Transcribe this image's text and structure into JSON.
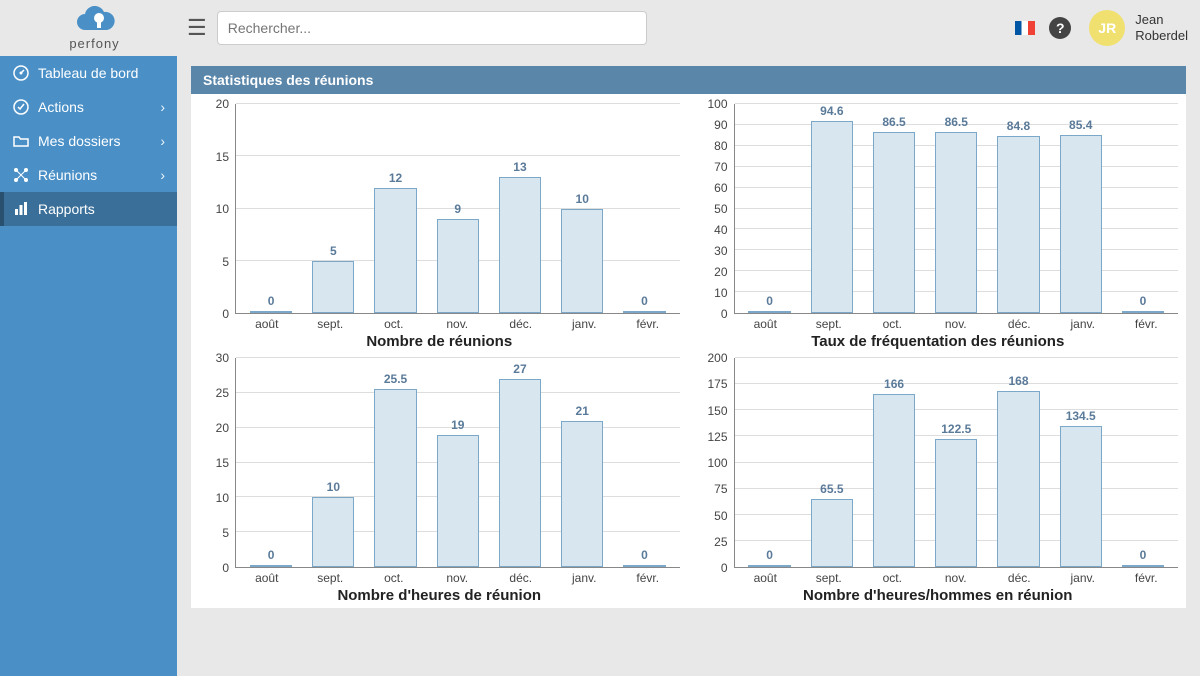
{
  "app": {
    "logo_text": "perfony",
    "search_placeholder": "Rechercher...",
    "user": {
      "initials": "JR",
      "first_name": "Jean",
      "last_name": "Roberdel"
    }
  },
  "sidebar": {
    "items": [
      {
        "icon": "gauge",
        "label": "Tableau de bord",
        "has_children": false
      },
      {
        "icon": "check",
        "label": "Actions",
        "has_children": true
      },
      {
        "icon": "folder",
        "label": "Mes dossiers",
        "has_children": true
      },
      {
        "icon": "nodes",
        "label": "Réunions",
        "has_children": true
      },
      {
        "icon": "bars",
        "label": "Rapports",
        "has_children": false,
        "active": true
      }
    ]
  },
  "panel": {
    "title": "Statistiques des réunions"
  },
  "colors": {
    "bar_fill": "#d8e6f0",
    "bar_border": "#7ba7c9",
    "grid": "#dddddd",
    "axis": "#888888",
    "value_label": "#5a7a99",
    "panel_header_bg": "#5a86aa",
    "sidebar_bg": "#4a90c7"
  },
  "charts": [
    {
      "title": "Nombre de réunions",
      "categories": [
        "août",
        "sept.",
        "oct.",
        "nov.",
        "déc.",
        "janv.",
        "févr."
      ],
      "values": [
        0,
        5,
        12,
        9,
        13,
        10,
        0
      ],
      "ylim": [
        0,
        20
      ],
      "ytick_step": 5,
      "type": "bar"
    },
    {
      "title": "Taux de fréquentation des réunions",
      "categories": [
        "août",
        "sept.",
        "oct.",
        "nov.",
        "déc.",
        "janv.",
        "févr."
      ],
      "values": [
        0,
        94.6,
        86.5,
        86.5,
        84.8,
        85.4,
        0
      ],
      "ylim": [
        0,
        100
      ],
      "ytick_step": 10,
      "type": "bar"
    },
    {
      "title": "Nombre d'heures de réunion",
      "categories": [
        "août",
        "sept.",
        "oct.",
        "nov.",
        "déc.",
        "janv.",
        "févr."
      ],
      "values": [
        0,
        10,
        25.5,
        19,
        27,
        21,
        0
      ],
      "ylim": [
        0,
        30
      ],
      "ytick_step": 5,
      "type": "bar"
    },
    {
      "title": "Nombre d'heures/hommes en réunion",
      "categories": [
        "août",
        "sept.",
        "oct.",
        "nov.",
        "déc.",
        "janv.",
        "févr."
      ],
      "values": [
        0,
        65.5,
        166,
        122.5,
        168,
        134.5,
        0
      ],
      "ylim": [
        0,
        200
      ],
      "ytick_step": 25,
      "type": "bar"
    }
  ]
}
